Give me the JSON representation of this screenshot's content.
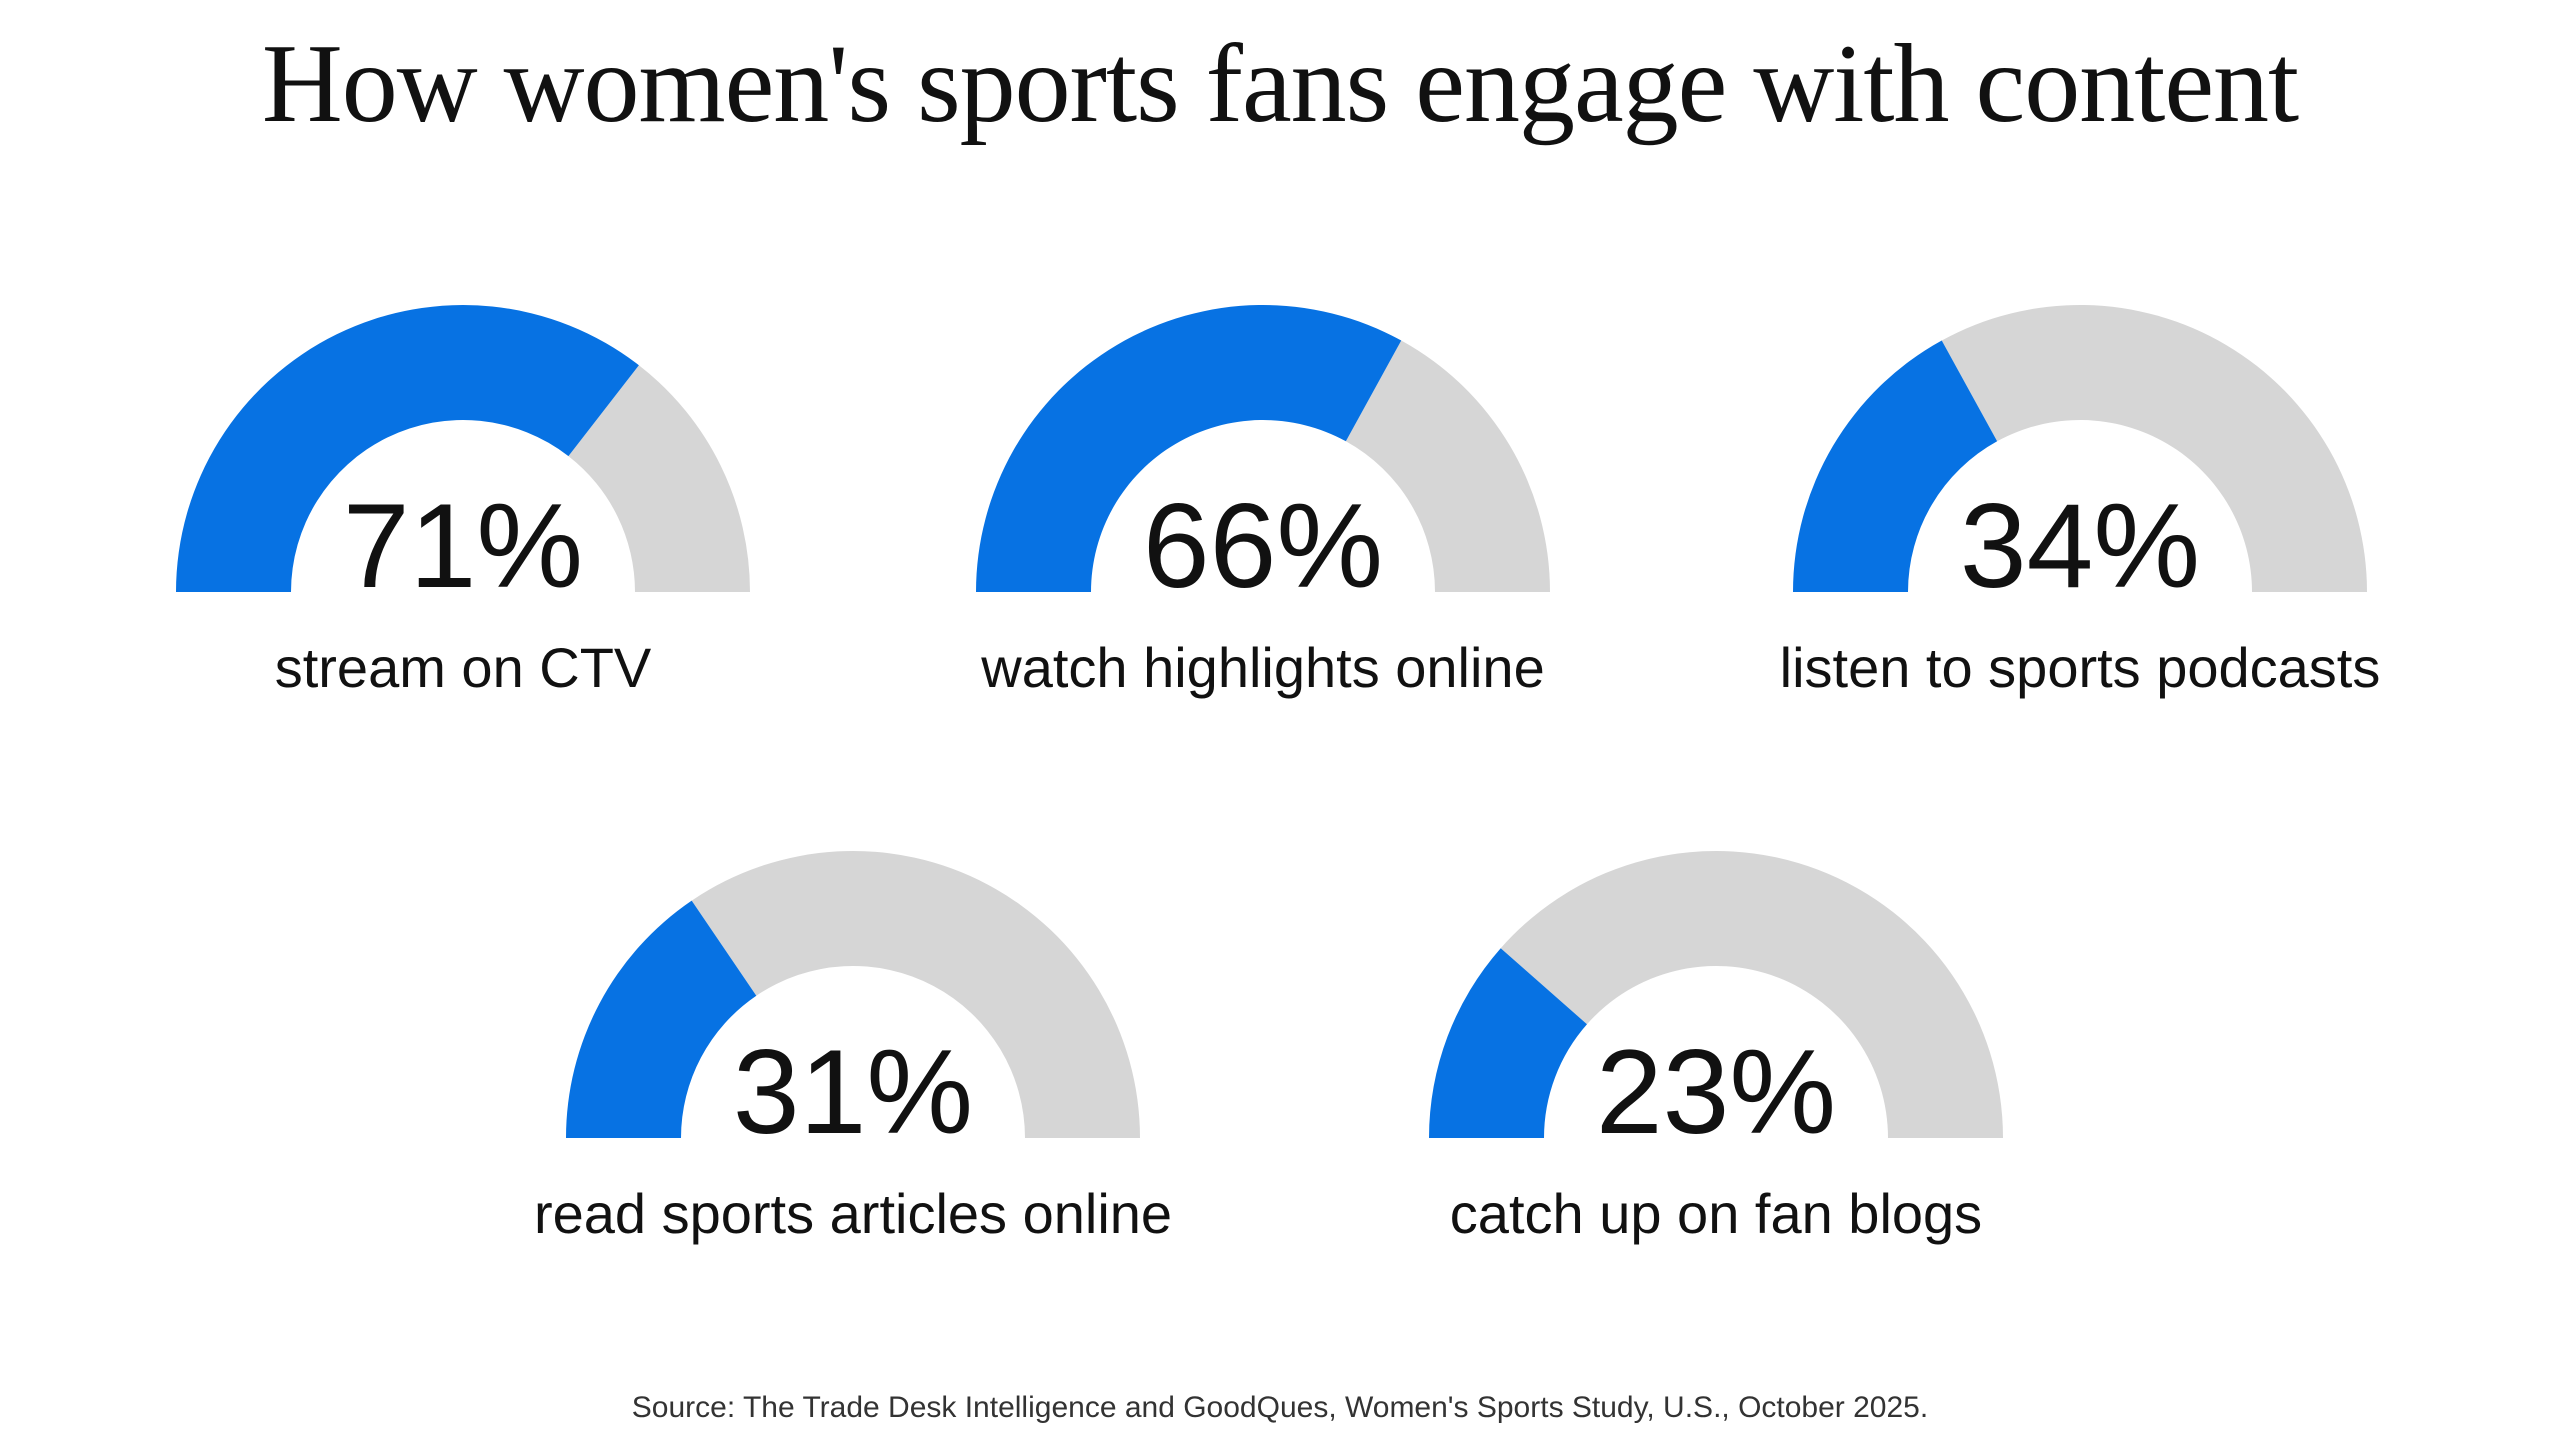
{
  "title": "How women's sports fans engage with content",
  "source": "Source: The Trade Desk Intelligence and GoodQues, Women's Sports Study, U.S., October 2025.",
  "colors": {
    "filled": "#0772E3",
    "track": "#D6D6D6",
    "text": "#111111"
  },
  "chart_data": {
    "type": "gauge",
    "max": 100,
    "items": [
      {
        "value": 71,
        "value_label": "71%",
        "label": "stream on CTV"
      },
      {
        "value": 66,
        "value_label": "66%",
        "label": "watch highlights online"
      },
      {
        "value": 34,
        "value_label": "34%",
        "label": "listen to sports podcasts"
      },
      {
        "value": 31,
        "value_label": "31%",
        "label": "read sports articles online"
      },
      {
        "value": 23,
        "value_label": "23%",
        "label": "catch up on fan blogs"
      }
    ]
  }
}
